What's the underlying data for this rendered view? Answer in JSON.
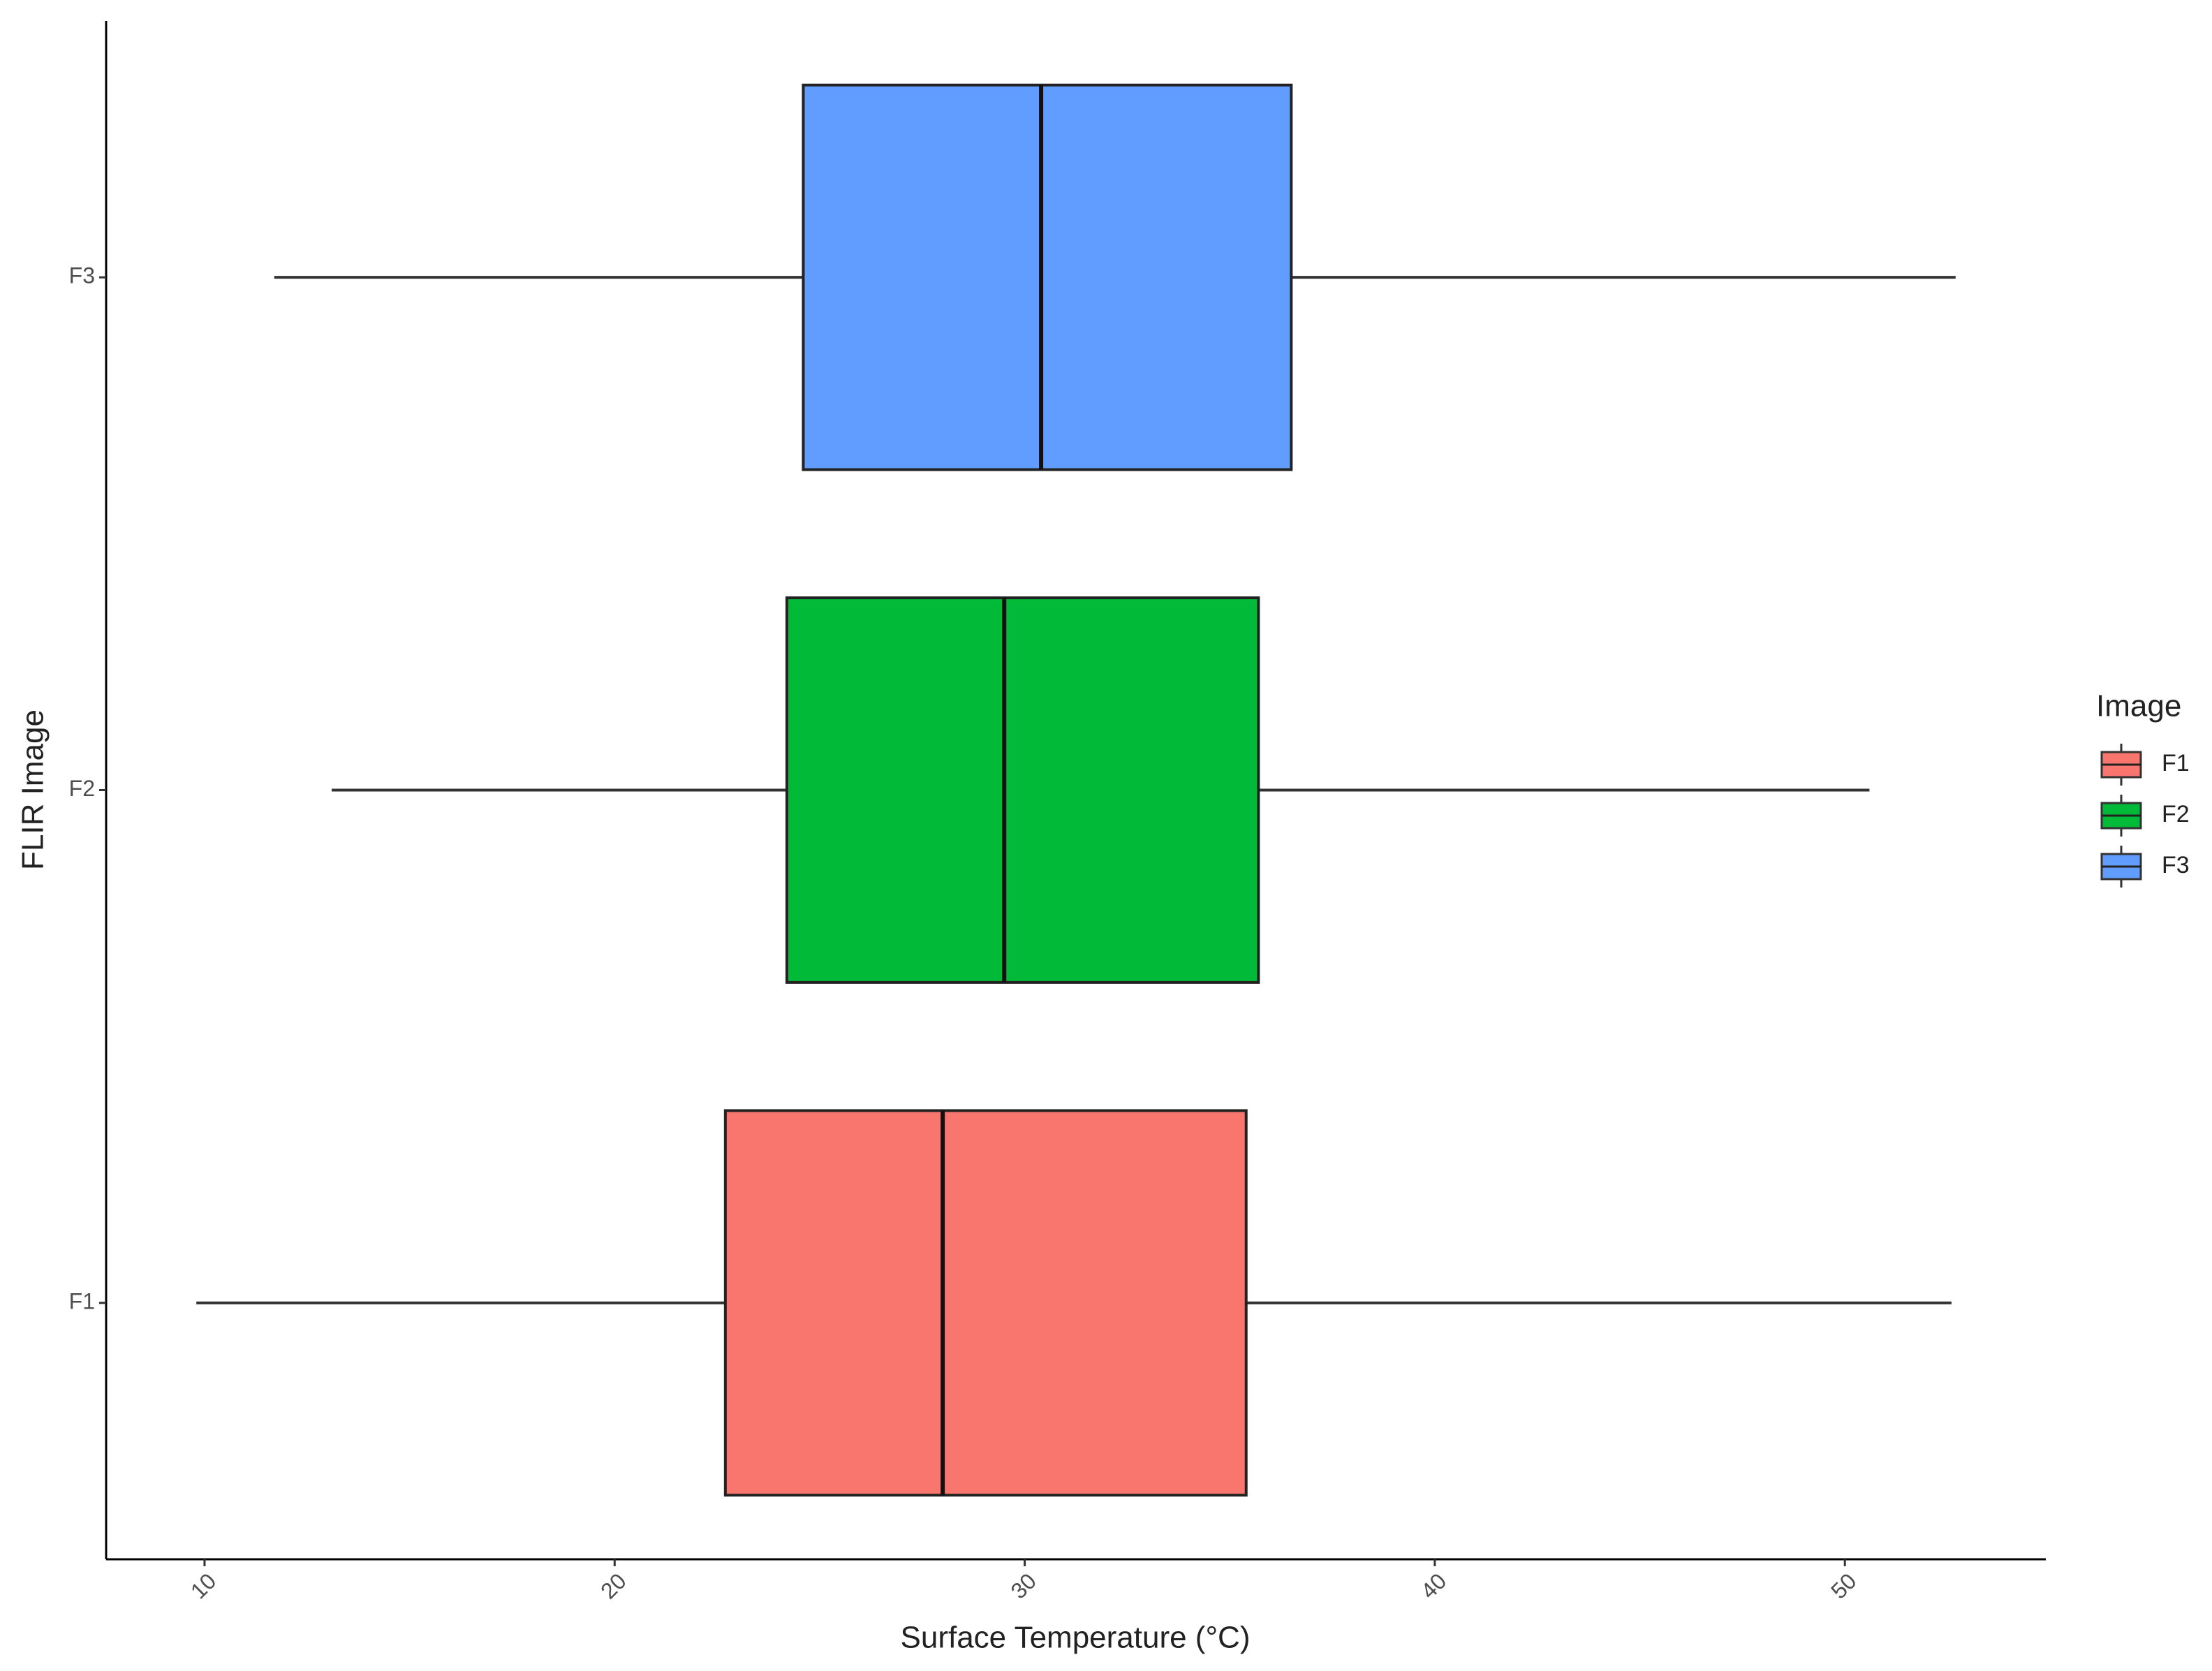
{
  "chart_data": {
    "type": "boxplot",
    "x_label": "Surface Temperature (°C)",
    "y_label": "FLIR Image",
    "legend_title": "Image",
    "legend_position": "right",
    "categories": [
      "F1",
      "F2",
      "F3"
    ],
    "colors": [
      "#f8766d",
      "#00ba38",
      "#619cff"
    ],
    "boxes": [
      {
        "min": 9.8,
        "q1": 22.7,
        "median": 28.0,
        "q3": 35.4,
        "max": 52.6
      },
      {
        "min": 13.1,
        "q1": 24.2,
        "median": 29.5,
        "q3": 35.7,
        "max": 50.6
      },
      {
        "min": 11.7,
        "q1": 24.6,
        "median": 30.4,
        "q3": 36.5,
        "max": 52.7
      }
    ],
    "xlim": [
      7.6,
      54.9
    ],
    "xticks": [
      10,
      20,
      30,
      40,
      50
    ],
    "grid": false
  }
}
